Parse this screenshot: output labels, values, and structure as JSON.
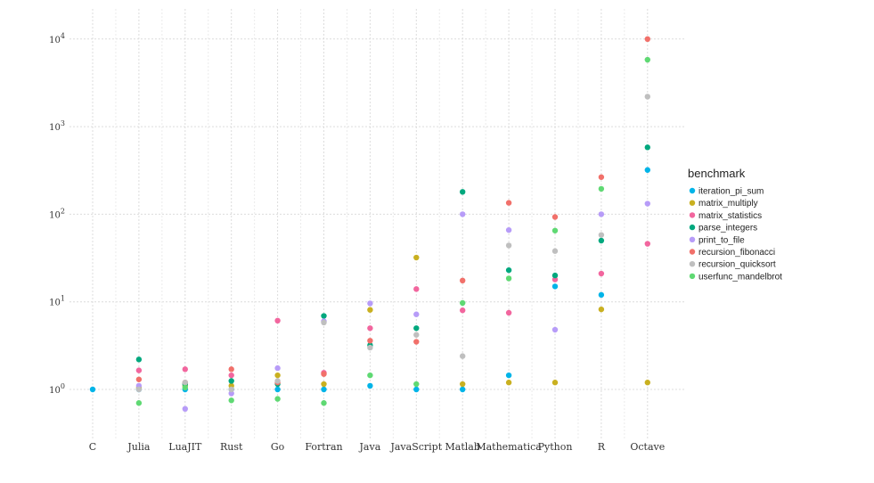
{
  "chart_data": {
    "type": "scatter",
    "categories": [
      "C",
      "Julia",
      "LuaJIT",
      "Rust",
      "Go",
      "Fortran",
      "Java",
      "JavaScript",
      "Matlab",
      "Mathematica",
      "Python",
      "R",
      "Octave"
    ],
    "y_scale": "log10",
    "ylim": [
      0.3,
      15000
    ],
    "y_ticks": [
      1,
      10,
      100,
      1000,
      10000
    ],
    "y_tick_exponents": [
      "0",
      "1",
      "2",
      "3",
      "4"
    ],
    "y_tick_base": "10",
    "grid": true,
    "legend_title": "benchmark",
    "legend_position": "right",
    "series": [
      {
        "name": "iteration_pi_sum",
        "color": "#00B4E8",
        "values": [
          1.0,
          1.0,
          1.0,
          1.0,
          1.0,
          1.0,
          1.1,
          1.0,
          1.0,
          1.45,
          15,
          12,
          320
        ]
      },
      {
        "name": "matrix_multiply",
        "color": "#C9B020",
        "values": [
          null,
          1.05,
          1.1,
          1.1,
          1.45,
          1.15,
          8.1,
          32,
          1.15,
          1.2,
          1.2,
          8.2,
          1.2
        ]
      },
      {
        "name": "matrix_statistics",
        "color": "#F2669E",
        "values": [
          null,
          1.65,
          1.7,
          1.45,
          6.1,
          1.55,
          5.0,
          14,
          8.0,
          7.5,
          18,
          21,
          46
        ]
      },
      {
        "name": "parse_integers",
        "color": "#00A87E",
        "values": [
          null,
          2.2,
          1.15,
          1.25,
          1.15,
          6.9,
          3.2,
          5.0,
          180,
          23,
          20,
          50,
          580
        ]
      },
      {
        "name": "print_to_file",
        "color": "#B79CF8",
        "values": [
          null,
          1.1,
          0.6,
          0.9,
          1.75,
          6.0,
          9.6,
          7.2,
          100,
          66,
          4.8,
          100,
          132
        ]
      },
      {
        "name": "recursion_fibonacci",
        "color": "#F1706A",
        "values": [
          null,
          1.3,
          1.2,
          1.7,
          1.2,
          1.5,
          3.6,
          3.5,
          17.5,
          135,
          93,
          265,
          10000
        ]
      },
      {
        "name": "recursion_quicksort",
        "color": "#BFBFBF",
        "values": [
          null,
          1.0,
          1.2,
          1.0,
          1.25,
          5.8,
          3.0,
          4.2,
          2.4,
          44,
          38,
          58,
          2200
        ]
      },
      {
        "name": "userfunc_mandelbrot",
        "color": "#5FD973",
        "values": [
          null,
          0.7,
          1.05,
          0.75,
          0.78,
          0.7,
          1.45,
          1.15,
          9.7,
          18.5,
          65,
          195,
          5800
        ]
      }
    ]
  }
}
